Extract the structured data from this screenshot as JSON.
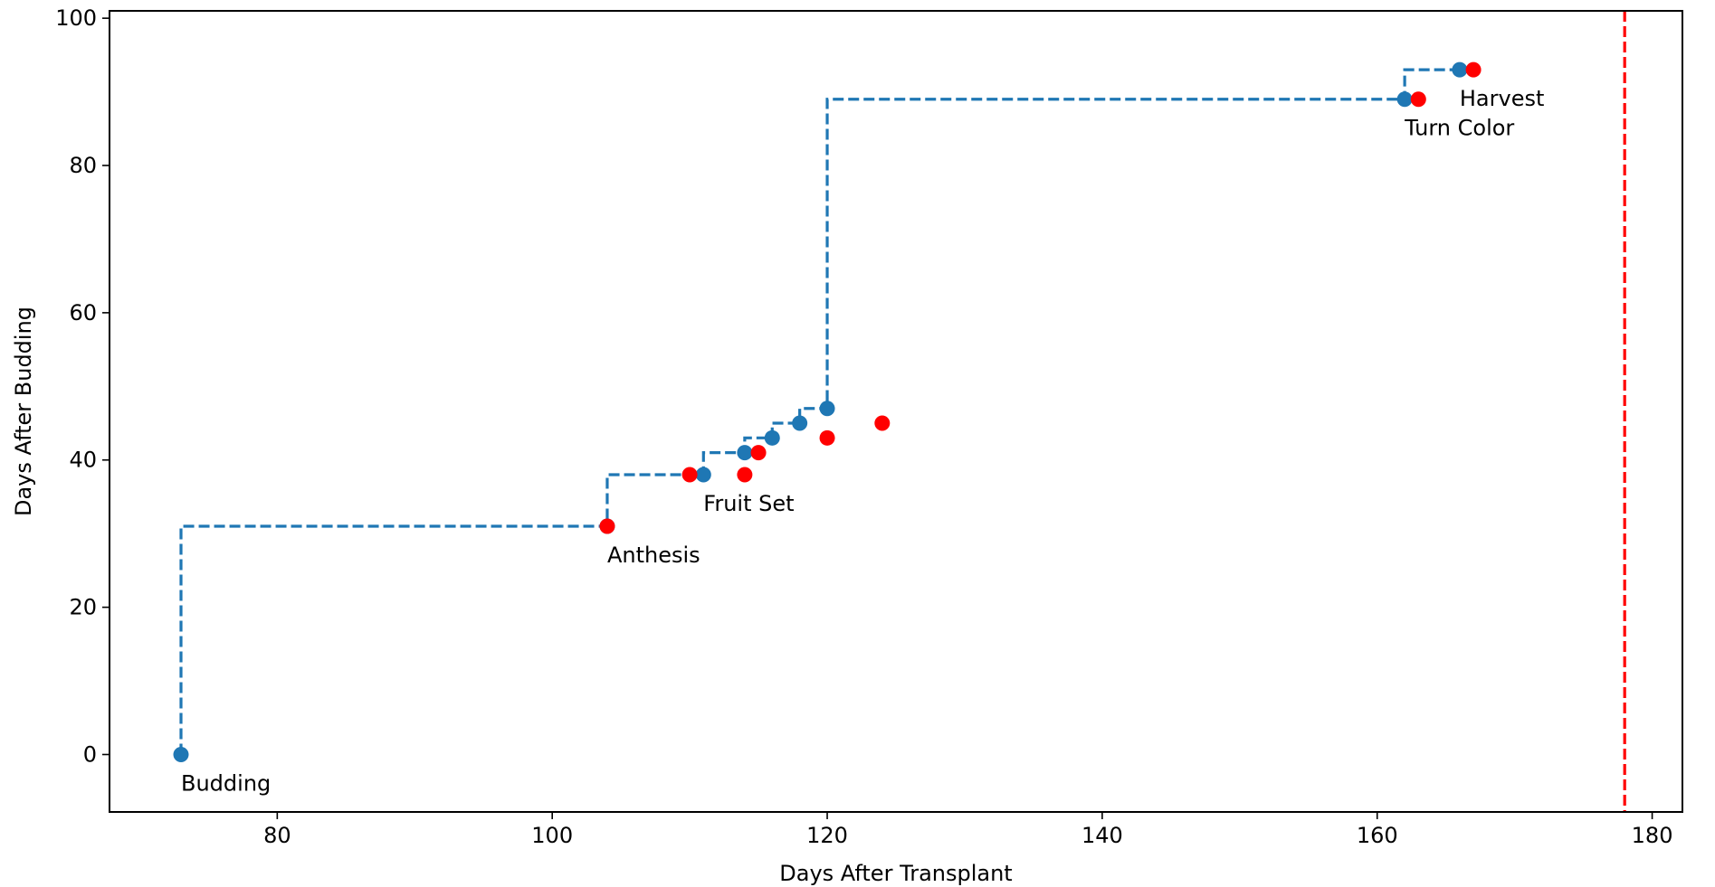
{
  "chart_data": {
    "type": "scatter",
    "title": "",
    "xlabel": "Days After Transplant",
    "ylabel": "Days After Budding",
    "xlim": [
      67.8,
      182.2
    ],
    "ylim": [
      -7.8,
      101
    ],
    "xticks": [
      80,
      100,
      120,
      140,
      160,
      180
    ],
    "yticks": [
      0,
      20,
      40,
      60,
      80,
      100
    ],
    "grid": false,
    "legend": "none",
    "colors": {
      "step_line": "#1f77b4",
      "blue_points": "#1f77b4",
      "red_points": "#ff0000",
      "vline": "#ff0000"
    },
    "series": [
      {
        "style": "step-dashed",
        "x": [
          73,
          104,
          110,
          111,
          114,
          114,
          116,
          118,
          120,
          162,
          166
        ],
        "y": [
          0,
          31,
          38,
          38,
          41,
          41,
          43,
          45,
          47,
          89,
          93
        ]
      },
      {
        "style": "markers",
        "color": "blue",
        "x": [
          73,
          104,
          111,
          114,
          116,
          118,
          120,
          162,
          166
        ],
        "y": [
          0,
          31,
          38,
          41,
          43,
          45,
          47,
          89,
          93
        ]
      },
      {
        "style": "markers",
        "color": "red",
        "x": [
          104,
          110,
          114,
          115,
          120,
          124,
          163,
          167
        ],
        "y": [
          31,
          38,
          38,
          41,
          43,
          45,
          89,
          93
        ]
      }
    ],
    "annotations": [
      {
        "text": "Budding",
        "x": 73,
        "y": 0
      },
      {
        "text": "Anthesis",
        "x": 104,
        "y": 31
      },
      {
        "text": "Fruit Set",
        "x": 111,
        "y": 38
      },
      {
        "text": "Turn Color",
        "x": 162,
        "y": 89
      },
      {
        "text": "Harvest",
        "x": 166,
        "y": 93
      }
    ],
    "vlines": [
      {
        "x": 178,
        "style": "dashed",
        "color": "red"
      }
    ]
  }
}
